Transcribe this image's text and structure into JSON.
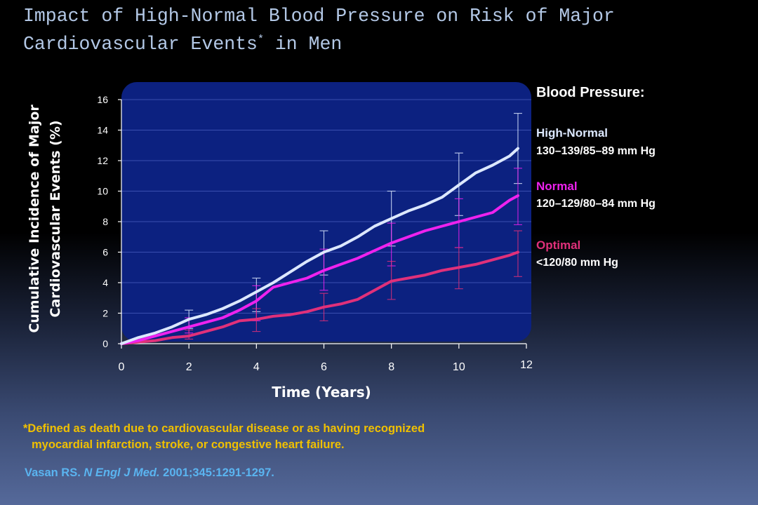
{
  "slide": {
    "title_main": "Impact of High-Normal Blood Pressure on Risk of Major Cardiovascular Events",
    "title_star": "*",
    "title_suffix": " in Men",
    "legend_heading": "Blood Pressure:",
    "footnote_line1": "*Defined as death due to cardiovascular disease or as having recognized",
    "footnote_line2": "myocardial infarction, stroke, or congestive heart failure.",
    "citation_author": "Vasan RS. ",
    "citation_journal": "N Engl J Med.",
    "citation_rest": " 2001;345:1291-1297."
  },
  "legend": [
    {
      "name": "High-Normal",
      "range": "130–139/85–89 mm Hg",
      "color": "#dce8ff"
    },
    {
      "name": "Normal",
      "range": "120–129/80–84 mm Hg",
      "color": "#ee22ee"
    },
    {
      "name": "Optimal",
      "range": "<120/80 mm Hg",
      "color": "#e0307a"
    }
  ],
  "chart_data": {
    "type": "line",
    "xlabel": "Time (Years)",
    "ylabel_line1": "Cumulative Incidence of Major",
    "ylabel_line2": "Cardiovascular Events (%)",
    "xlim": [
      0,
      12
    ],
    "ylim": [
      0,
      16
    ],
    "x_ticks": [
      "0",
      "2",
      "4",
      "6",
      "8",
      "10",
      "12"
    ],
    "y_ticks": [
      "0",
      "2",
      "4",
      "6",
      "8",
      "10",
      "12",
      "14",
      "16"
    ],
    "grid": true,
    "plot_background": "#0c2180",
    "series": [
      {
        "name": "High-Normal",
        "color": "#dce8ff",
        "x": [
          0,
          0.5,
          1,
          1.5,
          2,
          2.5,
          3,
          3.5,
          4,
          4.5,
          5,
          5.5,
          6,
          6.5,
          7,
          7.5,
          8,
          8.5,
          9,
          9.5,
          10,
          10.5,
          11,
          11.5,
          11.75
        ],
        "y": [
          0,
          0.4,
          0.7,
          1.1,
          1.6,
          1.9,
          2.3,
          2.8,
          3.4,
          4.0,
          4.7,
          5.4,
          6.0,
          6.4,
          7.0,
          7.7,
          8.2,
          8.7,
          9.1,
          9.6,
          10.4,
          11.2,
          11.7,
          12.3,
          12.8
        ]
      },
      {
        "name": "Normal",
        "color": "#ee22ee",
        "x": [
          0,
          0.5,
          1,
          1.5,
          2,
          2.5,
          3,
          3.5,
          4,
          4.5,
          5,
          5.5,
          6,
          6.5,
          7,
          7.5,
          8,
          8.5,
          9,
          9.5,
          10,
          10.5,
          11,
          11.5,
          11.75
        ],
        "y": [
          0,
          0.2,
          0.5,
          0.8,
          1.1,
          1.4,
          1.7,
          2.2,
          2.8,
          3.7,
          4.0,
          4.3,
          4.8,
          5.2,
          5.6,
          6.1,
          6.6,
          7.0,
          7.4,
          7.7,
          8.0,
          8.3,
          8.6,
          9.4,
          9.7
        ]
      },
      {
        "name": "Optimal",
        "color": "#e0307a",
        "x": [
          0,
          0.5,
          1,
          1.5,
          2,
          2.5,
          3,
          3.5,
          4,
          4.5,
          5,
          5.5,
          6,
          6.5,
          7,
          7.5,
          8,
          8.5,
          9,
          9.5,
          10,
          10.5,
          11,
          11.5,
          11.75
        ],
        "y": [
          0,
          0.1,
          0.2,
          0.4,
          0.5,
          0.8,
          1.1,
          1.5,
          1.6,
          1.8,
          1.9,
          2.1,
          2.4,
          2.6,
          2.9,
          3.5,
          4.1,
          4.3,
          4.5,
          4.8,
          5.0,
          5.2,
          5.5,
          5.8,
          6.0
        ]
      }
    ],
    "error_bars": [
      {
        "series": "High-Normal",
        "x": 2,
        "low": 1.0,
        "high": 2.2
      },
      {
        "series": "High-Normal",
        "x": 4,
        "low": 2.1,
        "high": 4.3
      },
      {
        "series": "High-Normal",
        "x": 6,
        "low": 4.5,
        "high": 7.4
      },
      {
        "series": "High-Normal",
        "x": 8,
        "low": 6.4,
        "high": 10.0
      },
      {
        "series": "High-Normal",
        "x": 10,
        "low": 8.4,
        "high": 12.5
      },
      {
        "series": "High-Normal",
        "x": 11.75,
        "low": 10.5,
        "high": 15.1
      },
      {
        "series": "Normal",
        "x": 2,
        "low": 0.7,
        "high": 1.7
      },
      {
        "series": "Normal",
        "x": 4,
        "low": 1.5,
        "high": 3.8
      },
      {
        "series": "Normal",
        "x": 6,
        "low": 3.5,
        "high": 6.2
      },
      {
        "series": "Normal",
        "x": 8,
        "low": 5.1,
        "high": 7.9
      },
      {
        "series": "Normal",
        "x": 10,
        "low": 6.3,
        "high": 9.5
      },
      {
        "series": "Normal",
        "x": 11.75,
        "low": 7.8,
        "high": 11.5
      },
      {
        "series": "Optimal",
        "x": 2,
        "low": 0.3,
        "high": 0.9
      },
      {
        "series": "Optimal",
        "x": 4,
        "low": 0.8,
        "high": 2.3
      },
      {
        "series": "Optimal",
        "x": 6,
        "low": 1.5,
        "high": 3.3
      },
      {
        "series": "Optimal",
        "x": 8,
        "low": 2.9,
        "high": 5.4
      },
      {
        "series": "Optimal",
        "x": 10,
        "low": 3.6,
        "high": 6.3
      },
      {
        "series": "Optimal",
        "x": 11.75,
        "low": 4.4,
        "high": 7.4
      }
    ]
  }
}
